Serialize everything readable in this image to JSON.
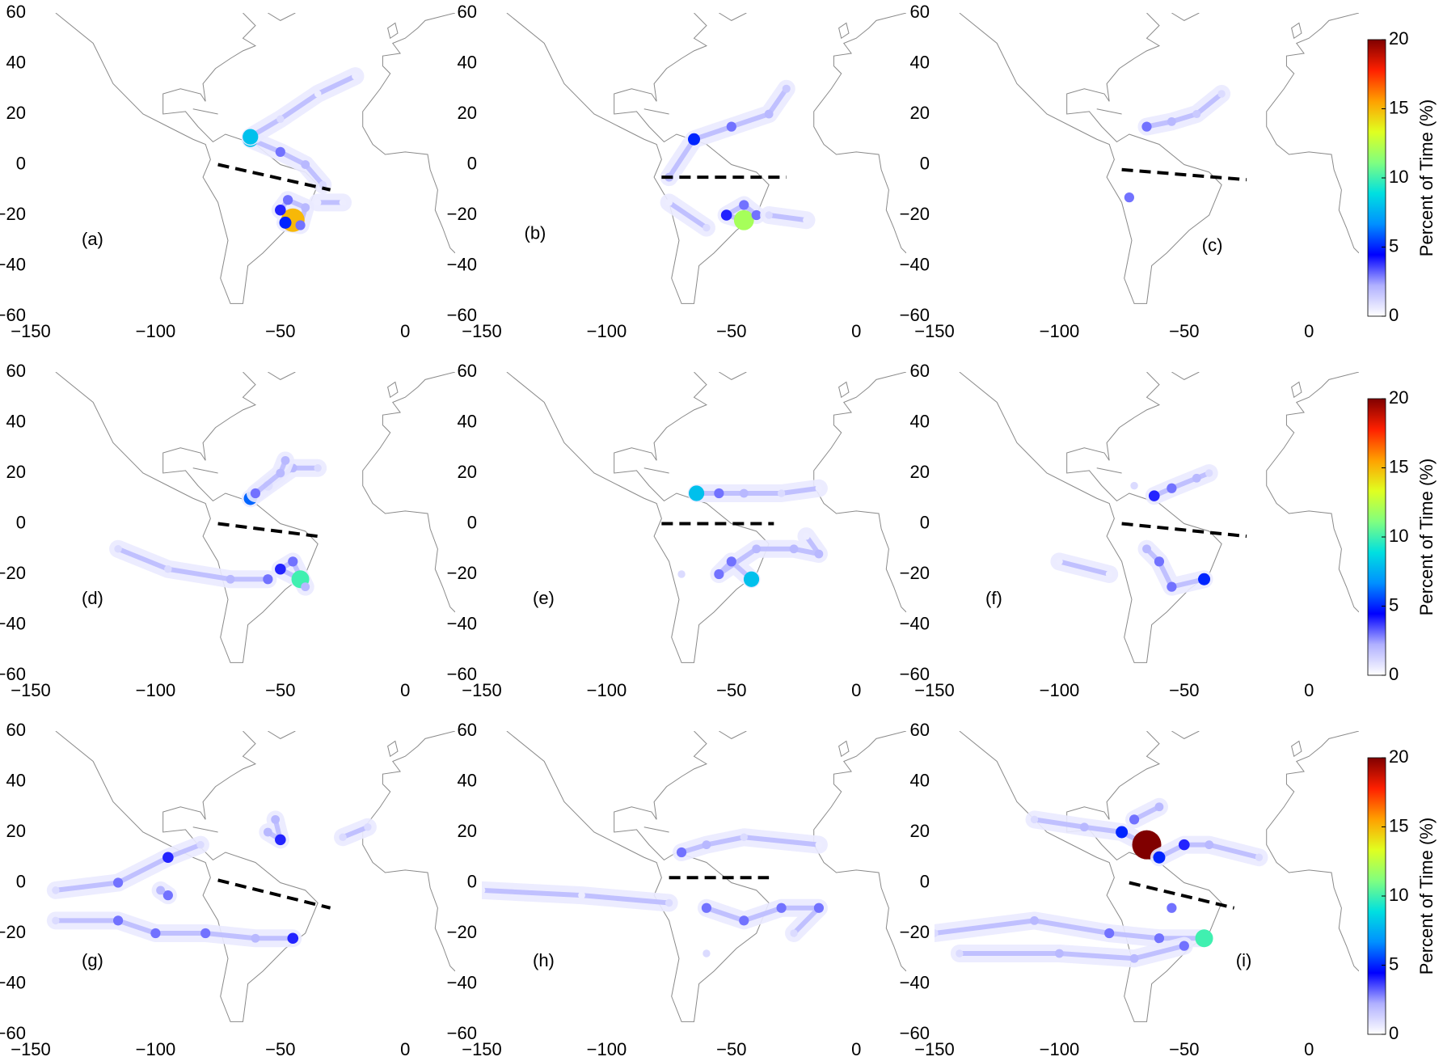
{
  "colormap": [
    "#ffffff",
    "#b0b0ff",
    "#0000ff",
    "#0090ff",
    "#00e0e0",
    "#80ff80",
    "#e0ff20",
    "#ffa000",
    "#ff2000",
    "#800000"
  ],
  "chart_data": [
    {
      "type": "trajectory-map",
      "label": "(a)",
      "xlim": [
        -150,
        20
      ],
      "ylim": [
        -60,
        60
      ],
      "xticks": [
        {
          "value": -150,
          "label": "−150"
        },
        {
          "value": -100,
          "label": "−100"
        },
        {
          "value": -50,
          "label": "−50"
        },
        0
      ],
      "yticks": [
        {
          "value": -60,
          "label": "−60"
        },
        {
          "value": -40,
          "label": "−40"
        },
        {
          "value": -20,
          "label": "−20"
        },
        0,
        20,
        40,
        60
      ],
      "plumes": [
        {
          "x": [
            -62,
            -50,
            -40,
            -33
          ],
          "y": [
            10,
            5,
            0,
            -8
          ],
          "values": [
            8,
            3,
            2,
            1
          ]
        },
        {
          "x": [
            -62,
            -50,
            -35,
            -20
          ],
          "y": [
            11,
            18,
            28,
            35
          ],
          "values": [
            8,
            1,
            0.5,
            0.5
          ]
        },
        {
          "x": [
            -45,
            -50,
            -47,
            -40,
            -42,
            -48
          ],
          "y": [
            -22,
            -18,
            -14,
            -17,
            -24,
            -23
          ],
          "values": [
            15,
            4,
            3,
            2,
            3,
            5
          ]
        },
        {
          "x": [
            -35,
            -25
          ],
          "y": [
            -15,
            -15
          ],
          "values": [
            0.5,
            0.5
          ]
        }
      ],
      "dashed_line": {
        "x": [
          -75,
          -30
        ],
        "y": [
          0,
          -10
        ]
      }
    },
    {
      "type": "trajectory-map",
      "label": "(b)",
      "xlim": [
        -150,
        20
      ],
      "ylim": [
        -60,
        60
      ],
      "xticks": [
        {
          "value": -150,
          "label": "−150"
        },
        {
          "value": -100,
          "label": "−100"
        },
        {
          "value": -50,
          "label": "−50"
        },
        0
      ],
      "yticks": [
        {
          "value": -60,
          "label": "−60"
        },
        {
          "value": -40,
          "label": "−40"
        },
        {
          "value": -20,
          "label": "−20"
        },
        0,
        20,
        40,
        60
      ],
      "plumes": [
        {
          "x": [
            -75,
            -65,
            -50,
            -35,
            -28
          ],
          "y": [
            -5,
            10,
            15,
            20,
            30
          ],
          "values": [
            2,
            5,
            3,
            2,
            1.5
          ]
        },
        {
          "x": [
            -45,
            -52,
            -45,
            -40
          ],
          "y": [
            -22,
            -20,
            -16,
            -20
          ],
          "values": [
            12,
            4,
            3,
            3
          ]
        },
        {
          "x": [
            -35,
            -20
          ],
          "y": [
            -20,
            -22
          ],
          "values": [
            1,
            0.5
          ]
        },
        {
          "x": [
            -75,
            -60
          ],
          "y": [
            -15,
            -25
          ],
          "values": [
            0.5,
            1
          ]
        }
      ],
      "dashed_line": {
        "x": [
          -78,
          -28
        ],
        "y": [
          -5,
          -5
        ]
      }
    },
    {
      "type": "trajectory-map",
      "label": "(c)",
      "xlim": [
        -150,
        20
      ],
      "ylim": [
        -60,
        60
      ],
      "xticks": [
        {
          "value": -150,
          "label": "−150"
        },
        {
          "value": -100,
          "label": "−100"
        },
        {
          "value": -50,
          "label": "−50"
        },
        0
      ],
      "yticks": [
        {
          "value": -60,
          "label": "−60"
        },
        {
          "value": -40,
          "label": "−40"
        },
        {
          "value": -20,
          "label": "−20"
        },
        0,
        20,
        40,
        60
      ],
      "plumes": [
        {
          "x": [
            -65,
            -55,
            -45,
            -35
          ],
          "y": [
            15,
            17,
            20,
            28
          ],
          "values": [
            3,
            2,
            1.5,
            1
          ]
        },
        {
          "x": [
            -72
          ],
          "y": [
            -13
          ],
          "values": [
            3
          ]
        }
      ],
      "dashed_line": {
        "x": [
          -75,
          -25
        ],
        "y": [
          -2,
          -6
        ]
      },
      "colorbar": {
        "label": "Percent of Time (%)",
        "lim": [
          0,
          20
        ],
        "ticks": [
          0,
          5,
          10,
          15,
          20
        ]
      }
    },
    {
      "type": "trajectory-map",
      "label": "(d)",
      "xlim": [
        -150,
        20
      ],
      "ylim": [
        -60,
        60
      ],
      "xticks": [
        {
          "value": -150,
          "label": "−150"
        },
        {
          "value": -100,
          "label": "−100"
        },
        {
          "value": -50,
          "label": "−50"
        },
        0
      ],
      "yticks": [
        {
          "value": -60,
          "label": "−60"
        },
        {
          "value": -40,
          "label": "−40"
        },
        {
          "value": -20,
          "label": "−20"
        },
        0,
        20,
        40,
        60
      ],
      "plumes": [
        {
          "x": [
            -62,
            -55,
            -45,
            -35
          ],
          "y": [
            10,
            15,
            22,
            22
          ],
          "values": [
            6,
            3,
            2,
            1
          ]
        },
        {
          "x": [
            -60,
            -50,
            -48
          ],
          "y": [
            12,
            20,
            25
          ],
          "values": [
            3,
            2,
            2
          ]
        },
        {
          "x": [
            -42,
            -50,
            -45,
            -40
          ],
          "y": [
            -22,
            -18,
            -15,
            -25
          ],
          "values": [
            10,
            4,
            3,
            2
          ]
        },
        {
          "x": [
            -115,
            -95,
            -70,
            -55
          ],
          "y": [
            -10,
            -18,
            -22,
            -22
          ],
          "values": [
            1,
            1,
            2,
            3
          ]
        }
      ],
      "dashed_line": {
        "x": [
          -75,
          -35
        ],
        "y": [
          0,
          -5
        ]
      }
    },
    {
      "type": "trajectory-map",
      "label": "(e)",
      "xlim": [
        -150,
        20
      ],
      "ylim": [
        -60,
        60
      ],
      "xticks": [
        {
          "value": -150,
          "label": "−150"
        },
        {
          "value": -100,
          "label": "−100"
        },
        {
          "value": -50,
          "label": "−50"
        },
        0
      ],
      "yticks": [
        {
          "value": -60,
          "label": "−60"
        },
        {
          "value": -40,
          "label": "−40"
        },
        {
          "value": -20,
          "label": "−20"
        },
        0,
        20,
        40,
        60
      ],
      "plumes": [
        {
          "x": [
            -64,
            -55,
            -45,
            -30,
            -15
          ],
          "y": [
            12,
            12,
            12,
            12,
            14
          ],
          "values": [
            8,
            3,
            2,
            1,
            0.5
          ]
        },
        {
          "x": [
            -42,
            -50,
            -55,
            -40,
            -25,
            -15,
            -20
          ],
          "y": [
            -22,
            -15,
            -20,
            -10,
            -10,
            -12,
            -5
          ],
          "values": [
            8,
            3,
            3,
            2,
            2,
            2,
            0.5
          ]
        },
        {
          "x": [
            -70
          ],
          "y": [
            -20
          ],
          "values": [
            1
          ]
        }
      ],
      "dashed_line": {
        "x": [
          -78,
          -33
        ],
        "y": [
          0,
          0
        ]
      }
    },
    {
      "type": "trajectory-map",
      "label": "(f)",
      "xlim": [
        -150,
        20
      ],
      "ylim": [
        -60,
        60
      ],
      "xticks": [
        {
          "value": -150,
          "label": "−150"
        },
        {
          "value": -100,
          "label": "−100"
        },
        {
          "value": -50,
          "label": "−50"
        },
        0
      ],
      "yticks": [
        {
          "value": -60,
          "label": "−60"
        },
        {
          "value": -40,
          "label": "−40"
        },
        {
          "value": -20,
          "label": "−20"
        },
        0,
        20,
        40,
        60
      ],
      "plumes": [
        {
          "x": [
            -62,
            -55,
            -45,
            -40
          ],
          "y": [
            11,
            14,
            18,
            20
          ],
          "values": [
            4,
            3,
            2,
            1
          ]
        },
        {
          "x": [
            -70
          ],
          "y": [
            15
          ],
          "values": [
            1
          ]
        },
        {
          "x": [
            -42,
            -55,
            -60,
            -65
          ],
          "y": [
            -22,
            -25,
            -15,
            -10
          ],
          "values": [
            5,
            3,
            3,
            2
          ]
        },
        {
          "x": [
            -100,
            -80
          ],
          "y": [
            -15,
            -20
          ],
          "values": [
            0.5,
            0.5
          ]
        }
      ],
      "dashed_line": {
        "x": [
          -75,
          -25
        ],
        "y": [
          0,
          -5
        ]
      },
      "colorbar": {
        "label": "Percent of Time (%)",
        "lim": [
          0,
          20
        ],
        "ticks": [
          0,
          5,
          10,
          15,
          20
        ]
      }
    },
    {
      "type": "trajectory-map",
      "label": "(g)",
      "xlim": [
        -150,
        20
      ],
      "ylim": [
        -60,
        60
      ],
      "xticks": [
        {
          "value": -150,
          "label": "−150"
        },
        {
          "value": -100,
          "label": "−100"
        },
        {
          "value": -50,
          "label": "−50"
        },
        0
      ],
      "yticks": [
        {
          "value": -60,
          "label": "−60"
        },
        {
          "value": -40,
          "label": "−40"
        },
        {
          "value": -20,
          "label": "−20"
        },
        0,
        20,
        40,
        60
      ],
      "plumes": [
        {
          "x": [
            -140,
            -115,
            -95,
            -82
          ],
          "y": [
            -3,
            0,
            10,
            15
          ],
          "values": [
            1,
            3,
            4,
            1
          ]
        },
        {
          "x": [
            -95,
            -98
          ],
          "y": [
            -5,
            -3
          ],
          "values": [
            3,
            2
          ]
        },
        {
          "x": [
            -140,
            -115,
            -100,
            -80,
            -60,
            -45
          ],
          "y": [
            -15,
            -15,
            -20,
            -20,
            -22,
            -22
          ],
          "values": [
            1,
            3,
            3,
            3,
            2,
            4
          ]
        },
        {
          "x": [
            -55,
            -50,
            -52
          ],
          "y": [
            20,
            17,
            25
          ],
          "values": [
            2,
            4,
            2
          ]
        },
        {
          "x": [
            -25,
            -15
          ],
          "y": [
            18,
            22
          ],
          "values": [
            1,
            1
          ]
        }
      ],
      "dashed_line": {
        "x": [
          -75,
          -30
        ],
        "y": [
          1,
          -10
        ]
      }
    },
    {
      "type": "trajectory-map",
      "label": "(h)",
      "xlim": [
        -150,
        20
      ],
      "ylim": [
        -60,
        60
      ],
      "xticks": [
        {
          "value": -150,
          "label": "−150"
        },
        {
          "value": -100,
          "label": "−100"
        },
        {
          "value": -50,
          "label": "−50"
        },
        0
      ],
      "yticks": [
        {
          "value": -60,
          "label": "−60"
        },
        {
          "value": -40,
          "label": "−40"
        },
        {
          "value": -20,
          "label": "−20"
        },
        0,
        20,
        40,
        60
      ],
      "plumes": [
        {
          "x": [
            -70,
            -60,
            -45,
            -15
          ],
          "y": [
            12,
            15,
            18,
            15
          ],
          "values": [
            3,
            2,
            1,
            0.5
          ]
        },
        {
          "x": [
            -150,
            -110,
            -75
          ],
          "y": [
            -3,
            -5,
            -8
          ],
          "values": [
            0.5,
            0.5,
            1
          ]
        },
        {
          "x": [
            -60,
            -45,
            -30,
            -15,
            -25
          ],
          "y": [
            -10,
            -15,
            -10,
            -10,
            -20
          ],
          "values": [
            3,
            3,
            3,
            3,
            1
          ]
        },
        {
          "x": [
            -60
          ],
          "y": [
            -28
          ],
          "values": [
            1
          ]
        }
      ],
      "dashed_line": {
        "x": [
          -75,
          -35
        ],
        "y": [
          2,
          2
        ]
      }
    },
    {
      "type": "trajectory-map",
      "label": "(i)",
      "xlim": [
        -150,
        20
      ],
      "ylim": [
        -60,
        60
      ],
      "xticks": [
        {
          "value": -150,
          "label": "−150"
        },
        {
          "value": -100,
          "label": "−100"
        },
        {
          "value": -50,
          "label": "−50"
        },
        0
      ],
      "yticks": [
        {
          "value": -60,
          "label": "−60"
        },
        {
          "value": -40,
          "label": "−40"
        },
        {
          "value": -20,
          "label": "−20"
        },
        0,
        20,
        40,
        60
      ],
      "plumes": [
        {
          "x": [
            -65,
            -75,
            -90,
            -110
          ],
          "y": [
            15,
            20,
            22,
            25
          ],
          "values": [
            20,
            5,
            2,
            1
          ]
        },
        {
          "x": [
            -60,
            -50,
            -40,
            -20
          ],
          "y": [
            10,
            15,
            15,
            10
          ],
          "values": [
            5,
            4,
            2,
            1
          ]
        },
        {
          "x": [
            -70,
            -60
          ],
          "y": [
            25,
            30
          ],
          "values": [
            3,
            2
          ]
        },
        {
          "x": [
            -150,
            -110,
            -80,
            -60,
            -42
          ],
          "y": [
            -20,
            -15,
            -20,
            -22,
            -22
          ],
          "values": [
            1,
            2,
            3,
            3,
            10
          ]
        },
        {
          "x": [
            -140,
            -100,
            -70,
            -50
          ],
          "y": [
            -28,
            -28,
            -30,
            -25
          ],
          "values": [
            1,
            2,
            2,
            3
          ]
        },
        {
          "x": [
            -55
          ],
          "y": [
            -10
          ],
          "values": [
            3
          ]
        }
      ],
      "dashed_line": {
        "x": [
          -72,
          -30
        ],
        "y": [
          0,
          -10
        ]
      },
      "colorbar": {
        "label": "Percent of Time (%)",
        "lim": [
          0,
          20
        ],
        "ticks": [
          0,
          5,
          10,
          15,
          20
        ]
      }
    }
  ]
}
